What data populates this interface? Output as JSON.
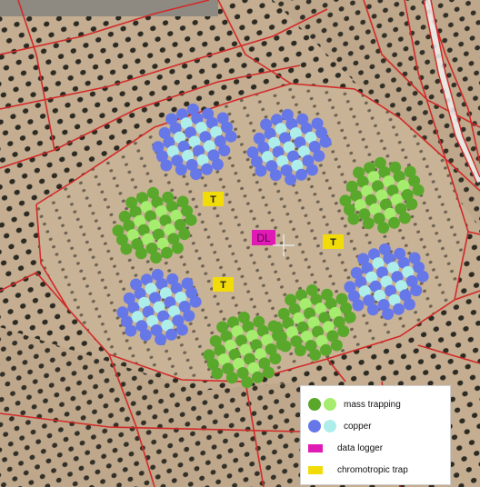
{
  "map": {
    "colors": {
      "soil": "#c2ab8e",
      "soil_dark": "#a48d71",
      "tree": "#2b2a23",
      "road": "#d22a2a",
      "mass_dark": "#5aa82b",
      "mass_light": "#a6ec6e",
      "copper_dark": "#6677e8",
      "copper_light": "#aeeeea",
      "data_logger": "#e01ab5",
      "trap": "#f1dc09"
    },
    "markers": {
      "data_logger": "DL",
      "traps": [
        "T",
        "T",
        "T"
      ]
    }
  },
  "legend": {
    "items": [
      {
        "label": "mass trapping",
        "icon": "green-dots"
      },
      {
        "label": "copper",
        "icon": "blue-dots"
      },
      {
        "label": "data logger",
        "icon": "magenta-rect"
      },
      {
        "label": "chromotropic trap",
        "icon": "yellow-rect"
      }
    ]
  }
}
